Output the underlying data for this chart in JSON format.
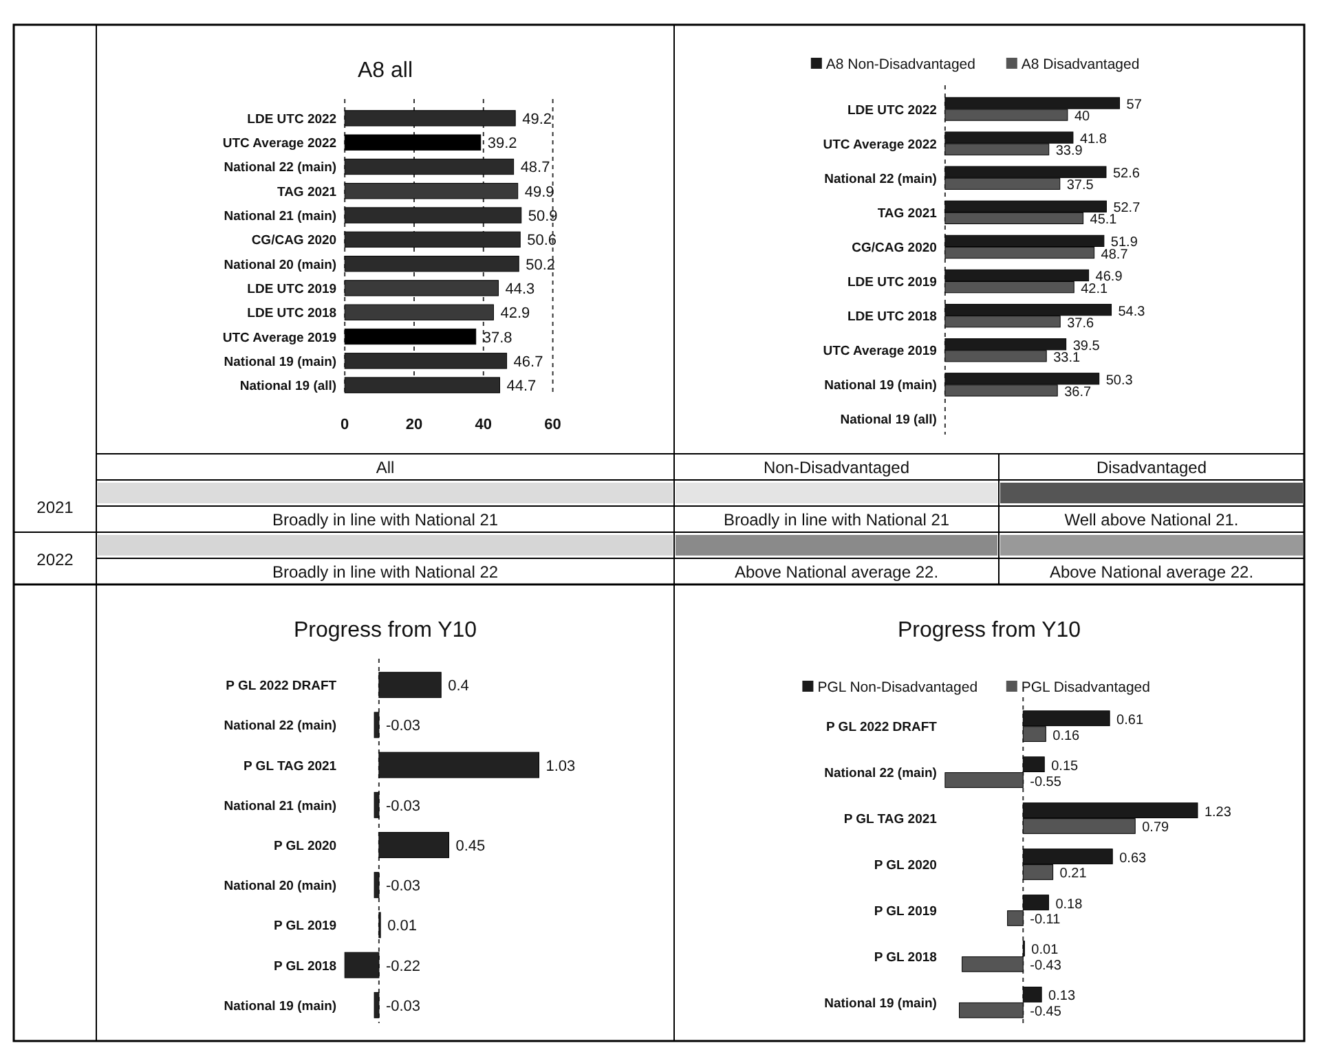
{
  "chart_data": [
    {
      "type": "bar",
      "orientation": "horizontal",
      "title": "A8 all",
      "categories": [
        "LDE UTC 2022",
        "UTC Average 2022",
        "National 22 (main)",
        "TAG 2021",
        "National 21 (main)",
        "CG/CAG 2020",
        "National 20 (main)",
        "LDE UTC 2019",
        "LDE UTC 2018",
        "UTC Average 2019",
        "National 19 (main)",
        "National 19 (all)"
      ],
      "values": [
        49.2,
        39.2,
        48.7,
        49.9,
        50.9,
        50.6,
        50.2,
        44.3,
        42.9,
        37.8,
        46.7,
        44.7
      ],
      "colors": [
        "#2b2b2b",
        "#000000",
        "#2b2b2b",
        "#3a3a3a",
        "#2b2b2b",
        "#2b2b2b",
        "#2b2b2b",
        "#3a3a3a",
        "#3a3a3a",
        "#000000",
        "#2b2b2b",
        "#2b2b2b"
      ],
      "xlim": [
        0,
        60
      ],
      "xticks": [
        0,
        20,
        40,
        60
      ],
      "grid": "x",
      "data_labels": true
    },
    {
      "type": "bar",
      "orientation": "horizontal",
      "categories": [
        "LDE UTC 2022",
        "UTC Average 2022",
        "National 22 (main)",
        "TAG 2021",
        "CG/CAG 2020",
        "LDE UTC 2019",
        "LDE UTC 2018",
        "UTC Average 2019",
        "National 19 (main)",
        "National 19 (all)"
      ],
      "series": [
        {
          "name": "A8 Non-Disadvantaged",
          "color": "#1a1a1a",
          "values": [
            57,
            41.8,
            52.6,
            52.7,
            51.9,
            46.9,
            54.3,
            39.5,
            50.3,
            null
          ]
        },
        {
          "name": "A8 Disadvantaged",
          "color": "#555555",
          "values": [
            40,
            33.9,
            37.5,
            45.1,
            48.7,
            42.1,
            37.6,
            33.1,
            36.7,
            null
          ]
        }
      ],
      "legend": "top",
      "data_labels": true,
      "ref_lines": [
        {
          "axis": "x",
          "value": 0,
          "line_style": "dashed"
        }
      ]
    },
    {
      "type": "other",
      "annotations": [
        "All",
        "Non-Disadvantaged",
        "Disadvantaged",
        "2021",
        "Broadly in line with National 21",
        "Broadly in line with National 21",
        "Well above National 21.",
        "2022",
        "Broadly in line with National 22",
        "Above National average 22.",
        "Above National average 22."
      ]
    },
    {
      "type": "bar",
      "orientation": "horizontal",
      "title": "Progress from Y10",
      "categories": [
        "P GL  2022 DRAFT",
        "National 22 (main)",
        "P GL  TAG 2021",
        "National 21 (main)",
        "P GL  2020",
        "National 20 (main)",
        "P GL 2019",
        "P GL 2018",
        "National 19 (main)"
      ],
      "values": [
        0.4,
        -0.03,
        1.03,
        -0.03,
        0.45,
        -0.03,
        0.01,
        -0.22,
        -0.03
      ],
      "color": "#222222",
      "data_labels": true,
      "ref_lines": [
        {
          "axis": "x",
          "value": 0,
          "line_style": "dashed"
        }
      ]
    },
    {
      "type": "bar",
      "orientation": "horizontal",
      "title": "Progress from Y10",
      "categories": [
        "P GL  2022 DRAFT",
        "National 22 (main)",
        "P GL  TAG 2021",
        "P GL  2020",
        "P GL 2019",
        "P GL 2018",
        "National 19 (main)"
      ],
      "series": [
        {
          "name": "PGL Non-Disadvantaged",
          "color": "#1a1a1a",
          "values": [
            0.61,
            0.15,
            1.23,
            0.63,
            0.18,
            0.01,
            0.13
          ]
        },
        {
          "name": "PGL Disadvantaged",
          "color": "#555555",
          "values": [
            0.16,
            -0.55,
            0.79,
            0.21,
            -0.11,
            -0.43,
            -0.45
          ]
        }
      ],
      "legend": "top",
      "data_labels": true,
      "ref_lines": [
        {
          "axis": "x",
          "value": 0,
          "line_style": "dashed"
        }
      ]
    }
  ]
}
